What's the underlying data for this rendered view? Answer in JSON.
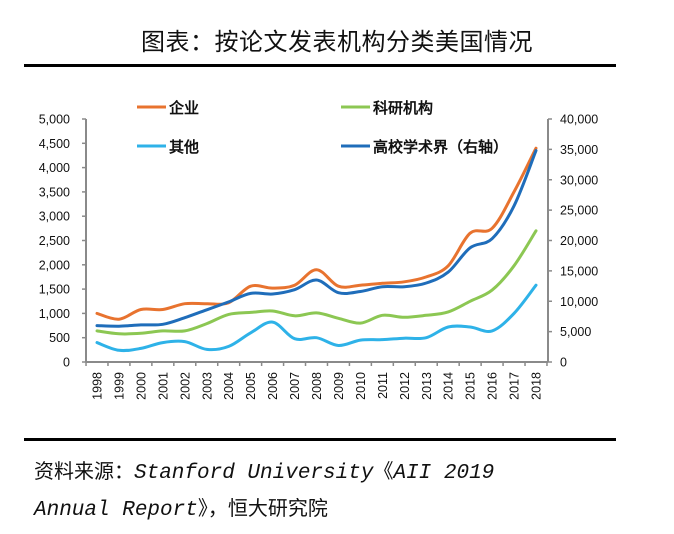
{
  "title": "图表：按论文发表机构分类美国情况",
  "source": {
    "prefix": "资料来源：",
    "en_line1": "Stanford University",
    "bracket_open": "《",
    "en_report_1": "AII 2019",
    "en_report_2": "Annual Report",
    "bracket_close": "》",
    "suffix": "，恒大研究院"
  },
  "chart_data": {
    "type": "line",
    "title": "按论文发表机构分类美国情况",
    "xlabel": "",
    "ylabel": "",
    "y2label": "",
    "categories": [
      "1998",
      "1999",
      "2000",
      "2001",
      "2002",
      "2003",
      "2004",
      "2005",
      "2006",
      "2007",
      "2008",
      "2009",
      "2010",
      "2011",
      "2012",
      "2013",
      "2014",
      "2015",
      "2016",
      "2017",
      "2018"
    ],
    "ylim": [
      0,
      5000
    ],
    "y_ticks": [
      "0",
      "500",
      "1,000",
      "1,500",
      "2,000",
      "2,500",
      "3,000",
      "3,500",
      "4,000",
      "4,500",
      "5,000"
    ],
    "y2lim": [
      0,
      40000
    ],
    "y2_ticks": [
      "0",
      "5,000",
      "10,000",
      "15,000",
      "20,000",
      "25,000",
      "30,000",
      "35,000",
      "40,000"
    ],
    "grid": false,
    "legend_position": "top",
    "series": [
      {
        "name": "企业",
        "axis": "left",
        "color": "#E8732F",
        "values": [
          1000,
          880,
          1080,
          1080,
          1200,
          1200,
          1220,
          1560,
          1520,
          1580,
          1900,
          1560,
          1580,
          1620,
          1650,
          1750,
          1980,
          2650,
          2750,
          3500,
          4400
        ]
      },
      {
        "name": "科研机构",
        "axis": "left",
        "color": "#8CC753",
        "values": [
          640,
          580,
          590,
          640,
          640,
          790,
          980,
          1020,
          1050,
          950,
          1010,
          900,
          800,
          960,
          920,
          960,
          1030,
          1250,
          1480,
          1980,
          2700
        ]
      },
      {
        "name": "其他",
        "axis": "left",
        "color": "#2EB2E8",
        "values": [
          400,
          240,
          280,
          400,
          420,
          260,
          320,
          600,
          820,
          480,
          500,
          340,
          450,
          460,
          490,
          500,
          720,
          720,
          640,
          1000,
          1580
        ]
      },
      {
        "name": "高校学术界（右轴）",
        "axis": "right",
        "color": "#1F6DBA",
        "values": [
          6000,
          5900,
          6100,
          6200,
          7300,
          8600,
          9900,
          11300,
          11200,
          11900,
          13500,
          11400,
          11600,
          12400,
          12400,
          13000,
          14800,
          18800,
          20300,
          25700,
          34800
        ]
      }
    ]
  }
}
